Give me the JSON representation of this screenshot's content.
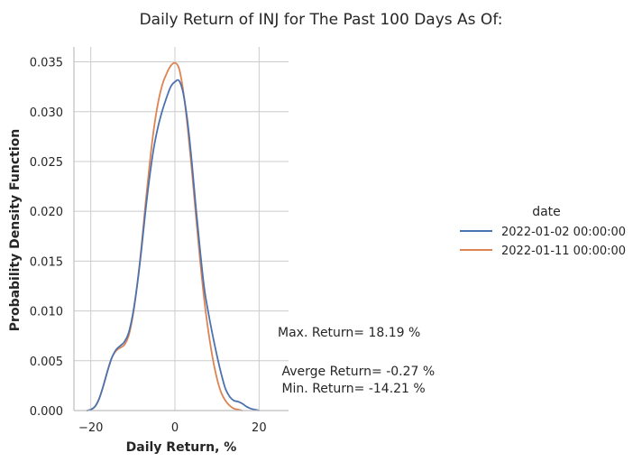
{
  "chart_data": {
    "type": "line",
    "kind": "kde",
    "title": "Daily Return of INJ for The Past 100 Days As Of:",
    "xlabel": "Daily Return, %",
    "ylabel": "Probability Density Function",
    "xlim": [
      -24,
      27
    ],
    "ylim": [
      0,
      0.0365
    ],
    "xticks": [
      -20,
      0,
      20
    ],
    "yticks": [
      0.0,
      0.005,
      0.01,
      0.015,
      0.02,
      0.025,
      0.03,
      0.035
    ],
    "ytick_labels": [
      "0.000",
      "0.005",
      "0.010",
      "0.015",
      "0.020",
      "0.025",
      "0.030",
      "0.035"
    ],
    "grid": true,
    "legend": {
      "title": "date",
      "placement": "right"
    },
    "series": [
      {
        "name": "2022-01-02 00:00:00",
        "color": "#4c72b0",
        "points": [
          [
            -21,
            0.0
          ],
          [
            -20,
            0.0001
          ],
          [
            -19,
            0.0004
          ],
          [
            -18,
            0.0012
          ],
          [
            -17,
            0.0025
          ],
          [
            -16,
            0.004
          ],
          [
            -15,
            0.0053
          ],
          [
            -14,
            0.0061
          ],
          [
            -13,
            0.0065
          ],
          [
            -12,
            0.0069
          ],
          [
            -11,
            0.0078
          ],
          [
            -10,
            0.0097
          ],
          [
            -9,
            0.0125
          ],
          [
            -8,
            0.016
          ],
          [
            -7,
            0.02
          ],
          [
            -6,
            0.0235
          ],
          [
            -5,
            0.0264
          ],
          [
            -4,
            0.0285
          ],
          [
            -3,
            0.0301
          ],
          [
            -2,
            0.0314
          ],
          [
            -1,
            0.0325
          ],
          [
            0,
            0.033
          ],
          [
            1,
            0.0331
          ],
          [
            2,
            0.0318
          ],
          [
            3,
            0.029
          ],
          [
            4,
            0.025
          ],
          [
            5,
            0.0203
          ],
          [
            6,
            0.016
          ],
          [
            7,
            0.0122
          ],
          [
            8,
            0.0097
          ],
          [
            9,
            0.0075
          ],
          [
            10,
            0.0055
          ],
          [
            11,
            0.0037
          ],
          [
            12,
            0.0022
          ],
          [
            13,
            0.0014
          ],
          [
            14,
            0.001
          ],
          [
            15,
            0.0009
          ],
          [
            16,
            0.0007
          ],
          [
            17,
            0.0004
          ],
          [
            18,
            0.0002
          ],
          [
            19,
            0.0001
          ],
          [
            20,
            0.0
          ]
        ]
      },
      {
        "name": "2022-01-11 00:00:00",
        "color": "#dd8452",
        "points": [
          [
            -21,
            0.0
          ],
          [
            -20,
            0.0001
          ],
          [
            -19,
            0.0004
          ],
          [
            -18,
            0.0012
          ],
          [
            -17,
            0.0025
          ],
          [
            -16,
            0.004
          ],
          [
            -15,
            0.0053
          ],
          [
            -14,
            0.006
          ],
          [
            -13,
            0.0063
          ],
          [
            -12,
            0.0066
          ],
          [
            -11,
            0.0075
          ],
          [
            -10,
            0.0095
          ],
          [
            -9,
            0.0125
          ],
          [
            -8,
            0.0163
          ],
          [
            -7,
            0.0207
          ],
          [
            -6,
            0.0248
          ],
          [
            -5,
            0.0283
          ],
          [
            -4,
            0.0309
          ],
          [
            -3,
            0.0327
          ],
          [
            -2,
            0.0338
          ],
          [
            -1,
            0.0346
          ],
          [
            0,
            0.0349
          ],
          [
            1,
            0.0343
          ],
          [
            2,
            0.032
          ],
          [
            3,
            0.0285
          ],
          [
            4,
            0.0242
          ],
          [
            5,
            0.0195
          ],
          [
            6,
            0.015
          ],
          [
            7,
            0.011
          ],
          [
            8,
            0.0078
          ],
          [
            9,
            0.0052
          ],
          [
            10,
            0.0032
          ],
          [
            11,
            0.0018
          ],
          [
            12,
            0.001
          ],
          [
            13,
            0.0005
          ],
          [
            14,
            0.0002
          ],
          [
            15,
            0.0001
          ],
          [
            16,
            0.0
          ]
        ]
      }
    ],
    "annotations": [
      "Max. Return= 18.19 %",
      " Averge Return= -0.27 %",
      " Min. Return= -14.21 %"
    ]
  }
}
